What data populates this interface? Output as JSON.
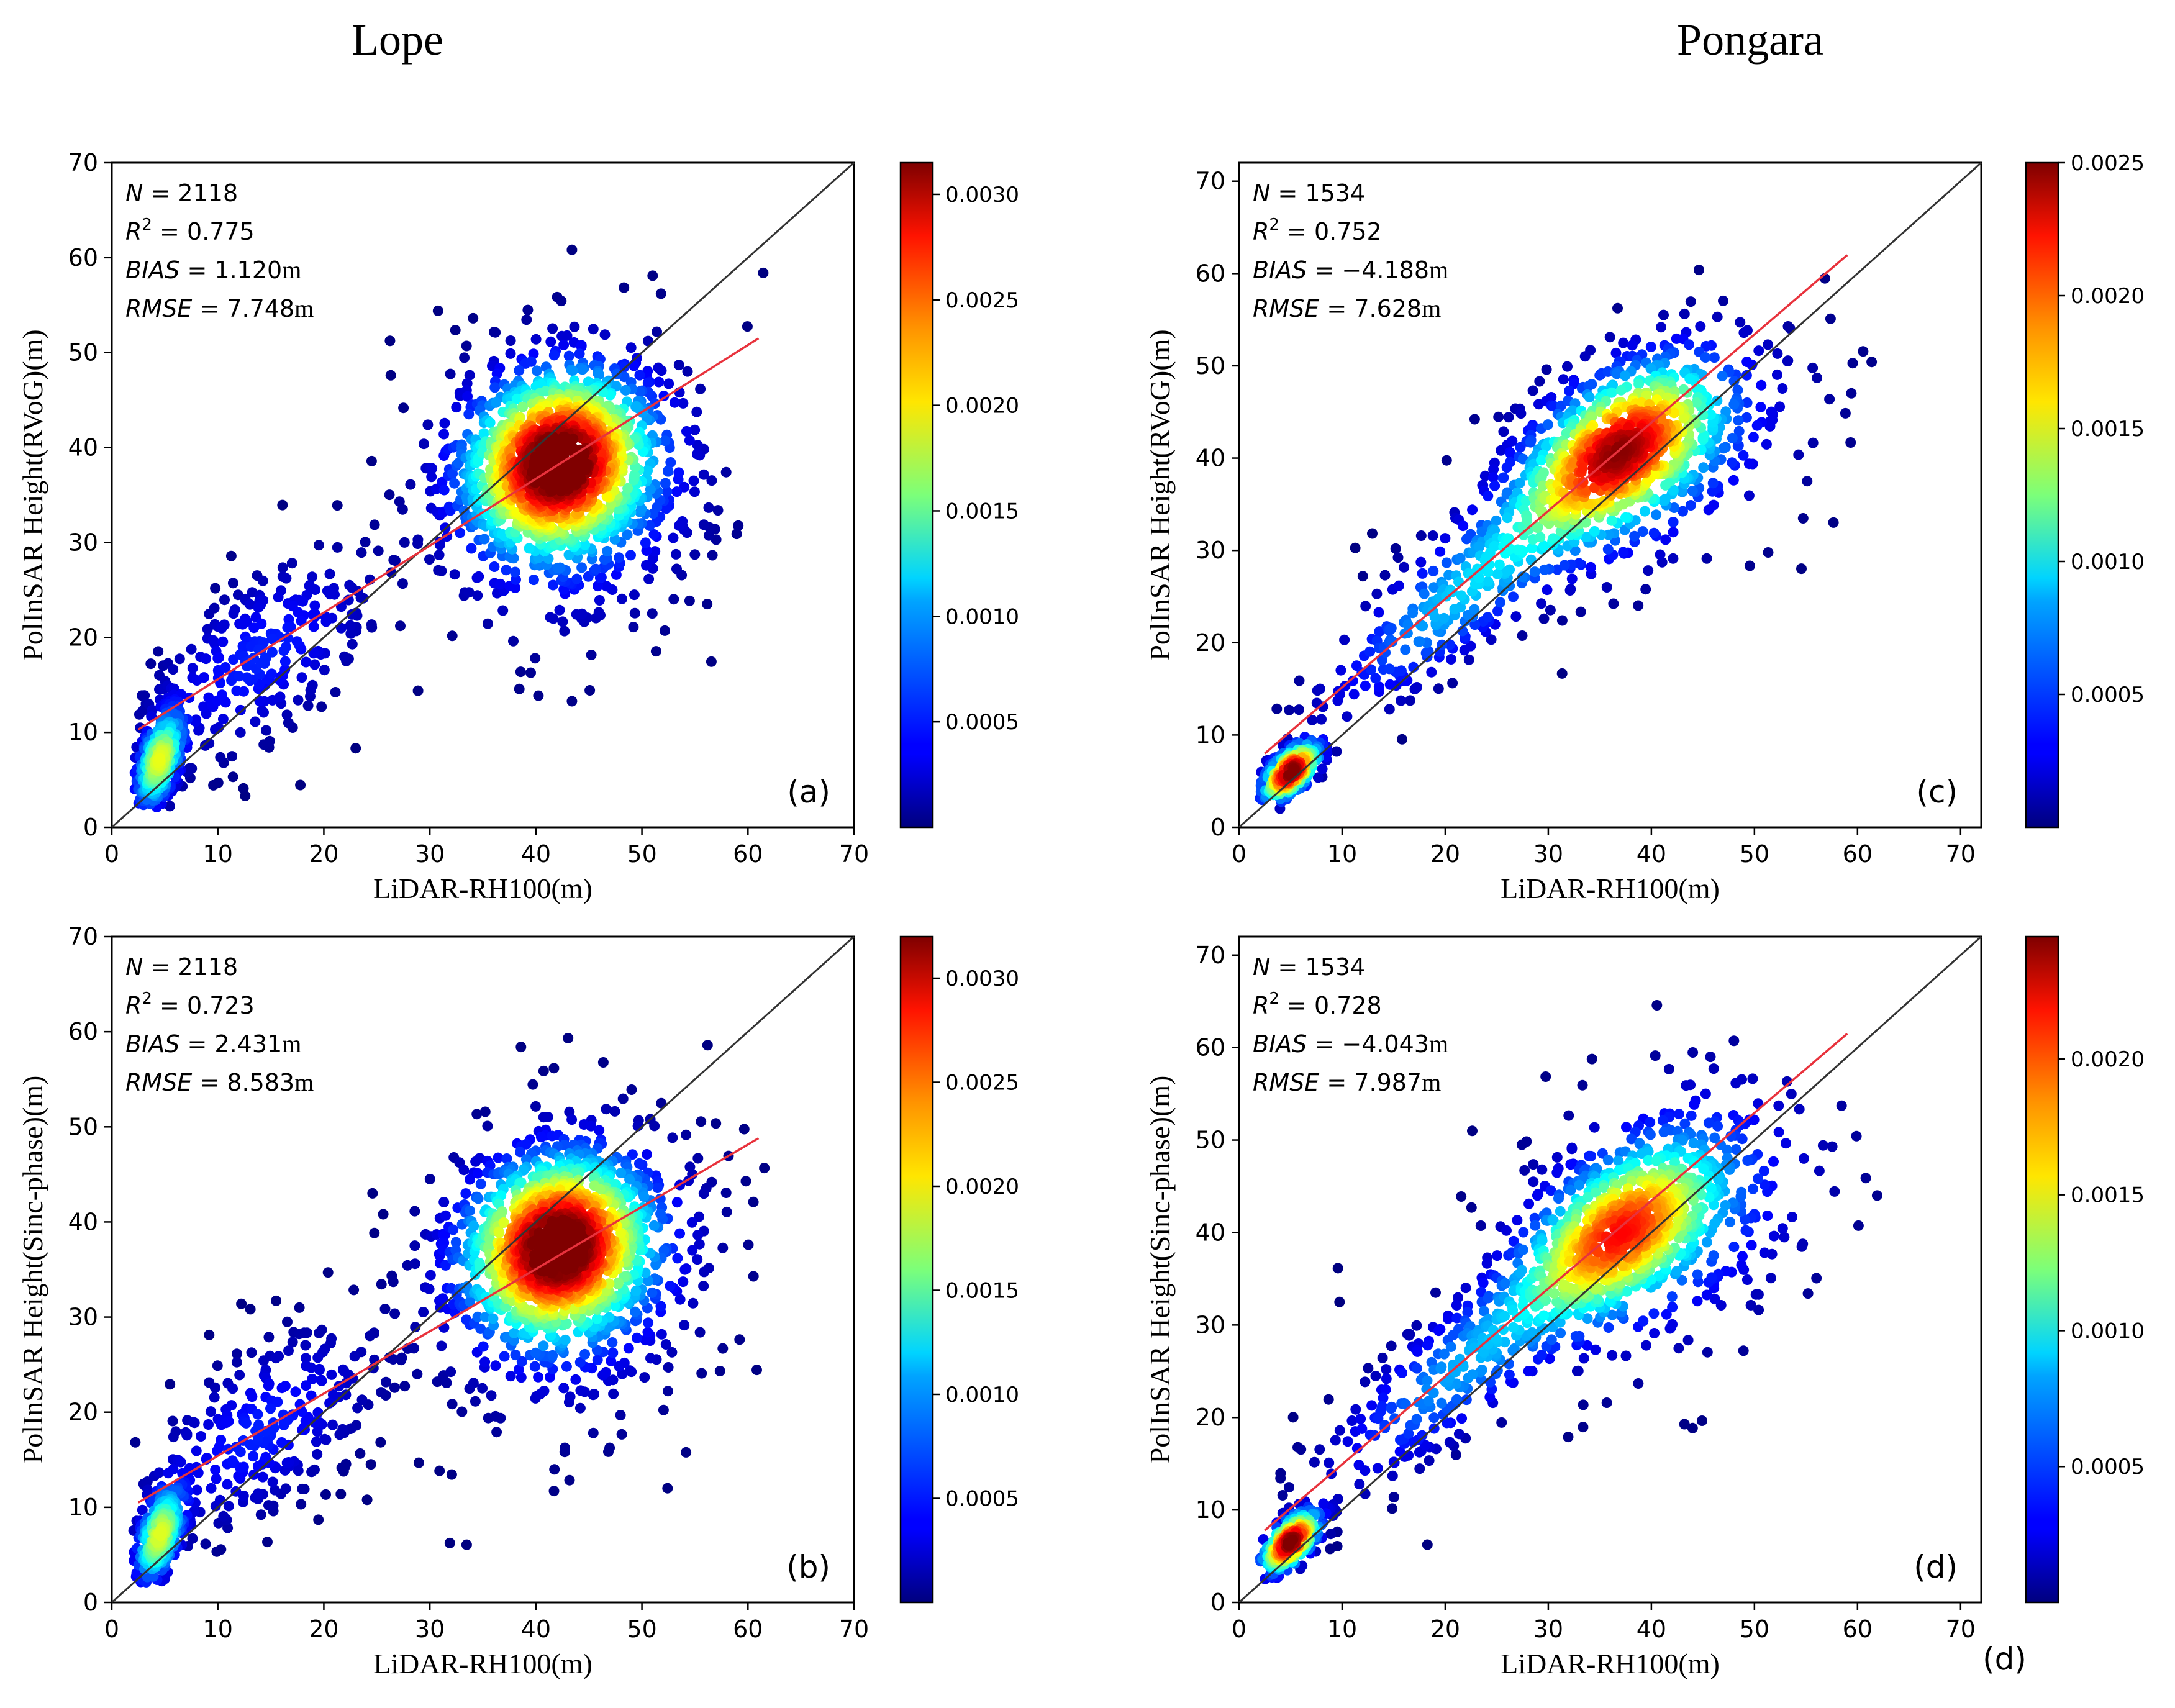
{
  "column_titles": [
    "Lope",
    "Pongara"
  ],
  "chart_data": [
    {
      "type": "scatter",
      "site": "Lope",
      "panel_label": "(a)",
      "xlabel": "LiDAR-RH100(m)",
      "ylabel": "PolInSAR Height(RVoG)(m)",
      "xlim": [
        0,
        70
      ],
      "ylim": [
        0,
        70
      ],
      "xticks": [
        "0",
        "10",
        "20",
        "30",
        "40",
        "50",
        "60",
        "70"
      ],
      "yticks": [
        "0",
        "10",
        "20",
        "30",
        "40",
        "50",
        "60",
        "70"
      ],
      "stats": {
        "n_label": "N",
        "n": "2118",
        "r2_label": "R",
        "r2": "0.775",
        "bias_label": "BIAS",
        "bias": "1.120",
        "rmse_label": "RMSE",
        "rmse": "7.748",
        "unit": "m"
      },
      "fit_line": {
        "x": [
          2.5,
          61
        ],
        "y": [
          10.3,
          51.5
        ]
      },
      "reference_line": {
        "x": [
          0,
          72
        ],
        "y": [
          0,
          72
        ]
      },
      "colorbar": {
        "min": 0.0,
        "max": 0.00315,
        "ticks": [
          "0.0005",
          "0.0010",
          "0.0015",
          "0.0020",
          "0.0025",
          "0.0030"
        ],
        "tick_values": [
          0.0005,
          0.001,
          0.0015,
          0.002,
          0.0025,
          0.003
        ]
      },
      "density_peak": 0.00315,
      "clusters": [
        {
          "cx": 42,
          "cy": 38.5,
          "sx": 5.0,
          "sy": 5.5,
          "rho": 0.1,
          "n": 1200,
          "peak": 0.00315
        },
        {
          "cx": 4.5,
          "cy": 7,
          "sx": 1.3,
          "sy": 3.0,
          "rho": 0.5,
          "n": 300,
          "peak": 0.0018
        },
        {
          "cx": 14,
          "cy": 18,
          "sx": 6.5,
          "sy": 6.5,
          "rho": 0.6,
          "n": 300,
          "peak": 0.0005
        },
        {
          "cx": 44,
          "cy": 35,
          "sx": 7.5,
          "sy": 9.0,
          "rho": 0.15,
          "n": 320,
          "peak": 0.0005
        }
      ]
    },
    {
      "type": "scatter",
      "site": "Lope",
      "panel_label": "(b)",
      "xlabel": "LiDAR-RH100(m)",
      "ylabel": "PolInSAR Height(Sinc-phase)(m)",
      "xlim": [
        0,
        70
      ],
      "ylim": [
        0,
        70
      ],
      "xticks": [
        "0",
        "10",
        "20",
        "30",
        "40",
        "50",
        "60",
        "70"
      ],
      "yticks": [
        "0",
        "10",
        "20",
        "30",
        "40",
        "50",
        "60",
        "70"
      ],
      "stats": {
        "n_label": "N",
        "n": "2118",
        "r2_label": "R",
        "r2": "0.723",
        "bias_label": "BIAS",
        "bias": "2.431",
        "rmse_label": "RMSE",
        "rmse": "8.583",
        "unit": "m"
      },
      "fit_line": {
        "x": [
          2.5,
          61
        ],
        "y": [
          10.5,
          48.8
        ]
      },
      "reference_line": {
        "x": [
          0,
          72
        ],
        "y": [
          0,
          72
        ]
      },
      "colorbar": {
        "min": 0.0,
        "max": 0.0032,
        "ticks": [
          "0.0005",
          "0.0010",
          "0.0015",
          "0.0020",
          "0.0025",
          "0.0030"
        ],
        "tick_values": [
          0.0005,
          0.001,
          0.0015,
          0.002,
          0.0025,
          0.003
        ]
      },
      "density_peak": 0.0032,
      "clusters": [
        {
          "cx": 42,
          "cy": 37.5,
          "sx": 5.0,
          "sy": 5.5,
          "rho": 0.1,
          "n": 1200,
          "peak": 0.0032
        },
        {
          "cx": 4.5,
          "cy": 7,
          "sx": 1.3,
          "sy": 3.0,
          "rho": 0.5,
          "n": 300,
          "peak": 0.0018
        },
        {
          "cx": 14,
          "cy": 18,
          "sx": 6.5,
          "sy": 6.5,
          "rho": 0.6,
          "n": 300,
          "peak": 0.0005
        },
        {
          "cx": 44,
          "cy": 34,
          "sx": 7.5,
          "sy": 9.0,
          "rho": 0.15,
          "n": 320,
          "peak": 0.0005
        }
      ]
    },
    {
      "type": "scatter",
      "site": "Pongara",
      "panel_label": "(c)",
      "xlabel": "LiDAR-RH100(m)",
      "ylabel": "PolInSAR Height(RVoG)(m)",
      "xlim": [
        0,
        72
      ],
      "ylim": [
        0,
        72
      ],
      "xticks": [
        "0",
        "10",
        "20",
        "30",
        "40",
        "50",
        "60",
        "70"
      ],
      "yticks": [
        "0",
        "10",
        "20",
        "30",
        "40",
        "50",
        "60",
        "70"
      ],
      "stats": {
        "n_label": "N",
        "n": "1534",
        "r2_label": "R",
        "r2": "0.752",
        "bias_label": "BIAS",
        "bias": "−4.188",
        "rmse_label": "RMSE",
        "rmse": "7.628",
        "unit": "m"
      },
      "fit_line": {
        "x": [
          2.5,
          59
        ],
        "y": [
          8.0,
          62.0
        ]
      },
      "reference_line": {
        "x": [
          0,
          72
        ],
        "y": [
          0,
          72
        ]
      },
      "colorbar": {
        "min": 0.0,
        "max": 0.0025,
        "ticks": [
          "0.0005",
          "0.0010",
          "0.0015",
          "0.0020",
          "0.0025"
        ],
        "tick_values": [
          0.0005,
          0.001,
          0.0015,
          0.002,
          0.0025
        ]
      },
      "density_peak": 0.0025,
      "clusters": [
        {
          "cx": 5,
          "cy": 6,
          "sx": 1.6,
          "sy": 1.8,
          "rho": 0.6,
          "n": 260,
          "peak": 0.0025
        },
        {
          "cx": 37,
          "cy": 41,
          "sx": 5.5,
          "sy": 5.5,
          "rho": 0.5,
          "n": 700,
          "peak": 0.0019
        },
        {
          "cx": 22,
          "cy": 26,
          "sx": 8.0,
          "sy": 8.0,
          "rho": 0.85,
          "n": 320,
          "peak": 0.0008
        },
        {
          "cx": 40,
          "cy": 40,
          "sx": 9.0,
          "sy": 8.0,
          "rho": 0.4,
          "n": 260,
          "peak": 0.0005
        }
      ]
    },
    {
      "type": "scatter",
      "site": "Pongara",
      "panel_label": "(d)",
      "extra_label": "(d)",
      "xlabel": "LiDAR-RH100(m)",
      "ylabel": "PolInSAR Height(Sinc-phase)(m)",
      "xlim": [
        0,
        72
      ],
      "ylim": [
        0,
        72
      ],
      "xticks": [
        "0",
        "10",
        "20",
        "30",
        "40",
        "50",
        "60",
        "70"
      ],
      "yticks": [
        "0",
        "10",
        "20",
        "30",
        "40",
        "50",
        "60",
        "70"
      ],
      "stats": {
        "n_label": "N",
        "n": "1534",
        "r2_label": "R",
        "r2": "0.728",
        "bias_label": "BIAS",
        "bias": "−4.043",
        "rmse_label": "RMSE",
        "rmse": "7.987",
        "unit": "m"
      },
      "fit_line": {
        "x": [
          2.5,
          59
        ],
        "y": [
          7.8,
          61.5
        ]
      },
      "reference_line": {
        "x": [
          0,
          72
        ],
        "y": [
          0,
          72
        ]
      },
      "colorbar": {
        "min": 0.0,
        "max": 0.00245,
        "ticks": [
          "0.0005",
          "0.0010",
          "0.0015",
          "0.0020"
        ],
        "tick_values": [
          0.0005,
          0.001,
          0.0015,
          0.002
        ]
      },
      "density_peak": 0.00245,
      "clusters": [
        {
          "cx": 5,
          "cy": 6.5,
          "sx": 1.6,
          "sy": 1.9,
          "rho": 0.6,
          "n": 260,
          "peak": 0.00245
        },
        {
          "cx": 37,
          "cy": 40,
          "sx": 5.5,
          "sy": 5.5,
          "rho": 0.5,
          "n": 700,
          "peak": 0.0016
        },
        {
          "cx": 22,
          "cy": 26,
          "sx": 8.0,
          "sy": 8.0,
          "rho": 0.85,
          "n": 320,
          "peak": 0.0007
        },
        {
          "cx": 42,
          "cy": 42,
          "sx": 9.0,
          "sy": 9.5,
          "rho": 0.35,
          "n": 260,
          "peak": 0.0005
        }
      ]
    }
  ]
}
